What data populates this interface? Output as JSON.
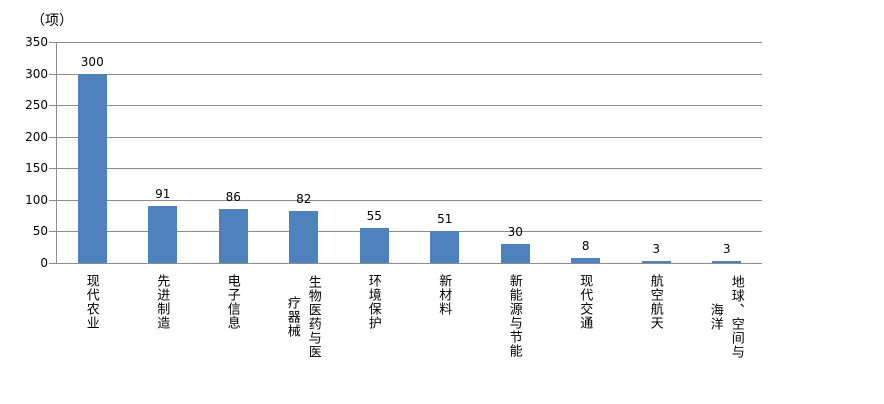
{
  "chart_data": {
    "type": "bar",
    "title": "",
    "unit_label": "（项）",
    "categories": [
      "现代农业",
      "先进制造",
      "电子信息",
      "生物医药与医疗器械",
      "环境保护",
      "新材料",
      "新能源与节能",
      "现代交通",
      "航空航天",
      "地球、空间与海洋"
    ],
    "values": [
      300,
      91,
      86,
      82,
      55,
      51,
      30,
      8,
      3,
      3
    ],
    "data_labels_shown": true,
    "xlabel": "",
    "ylabel": "（项）",
    "ylim": [
      0,
      350
    ],
    "ytick_step": 50,
    "ytick_labels": [
      "0",
      "50",
      "100",
      "150",
      "200",
      "250",
      "300",
      "350"
    ],
    "grid": true,
    "legend_position": "none",
    "colors": {
      "bar": "#4F81BD",
      "gridline": "#8C8C8C",
      "axis": "#8C8C8C",
      "text": "#000000",
      "background": "#FFFFFF"
    }
  }
}
